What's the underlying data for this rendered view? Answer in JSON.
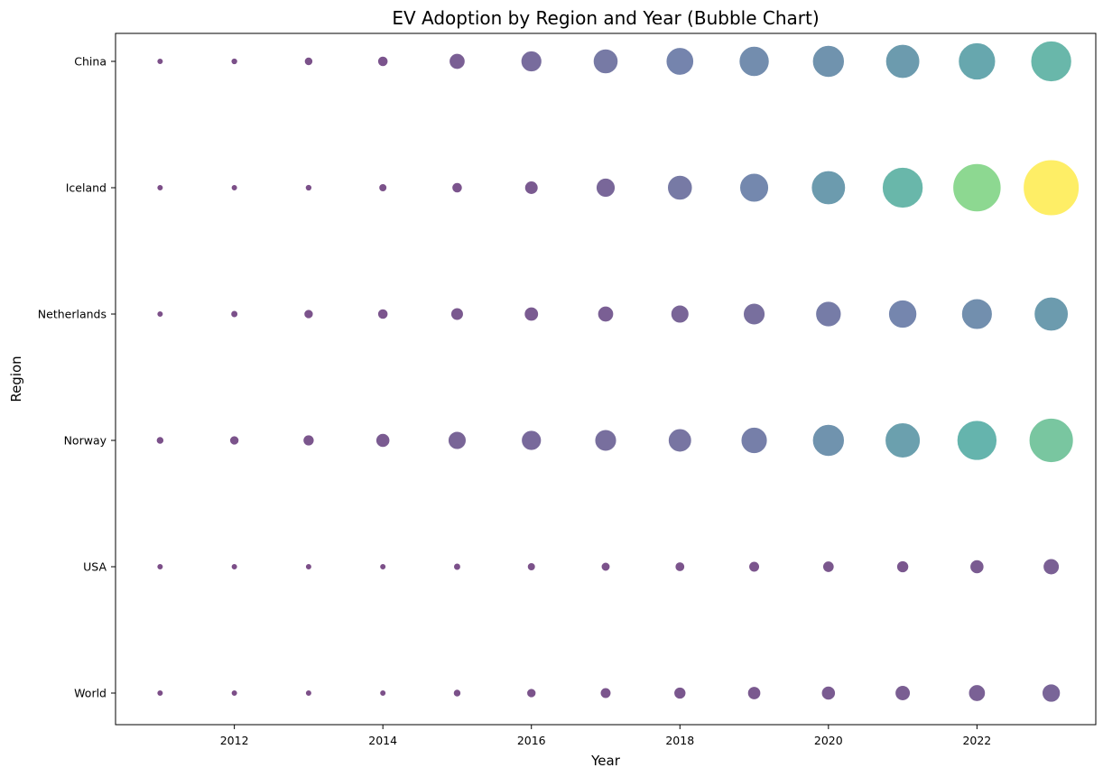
{
  "chart_data": {
    "type": "scatter",
    "title": "EV Adoption by Region and Year (Bubble Chart)",
    "xlabel": "Year",
    "ylabel": "Region",
    "xlim": [
      2010.4,
      2023.6
    ],
    "x_ticks": [
      2012,
      2014,
      2016,
      2018,
      2020,
      2022
    ],
    "categories": [
      "World",
      "USA",
      "Norway",
      "Netherlands",
      "Iceland",
      "China"
    ],
    "x": [
      2011,
      2012,
      2013,
      2014,
      2015,
      2016,
      2017,
      2018,
      2019,
      2020,
      2021,
      2022,
      2023
    ],
    "colormap": "viridis",
    "size_range_note": "bubble area and color encode relative share",
    "series": [
      {
        "category": "China",
        "values": [
          0.5,
          0.6,
          1.0,
          1.5,
          3.5,
          6.0,
          8.5,
          10.5,
          12.5,
          14.0,
          16.0,
          19.0,
          23.0
        ]
      },
      {
        "category": "Iceland",
        "values": [
          0.3,
          0.4,
          0.6,
          0.9,
          1.5,
          2.5,
          5.0,
          8.5,
          11.5,
          16.0,
          23.0,
          32.0,
          43.0
        ]
      },
      {
        "category": "Netherlands",
        "values": [
          0.5,
          0.7,
          1.2,
          1.5,
          2.2,
          2.8,
          3.5,
          4.5,
          6.5,
          9.0,
          11.0,
          13.0,
          16.0
        ]
      },
      {
        "category": "Norway",
        "values": [
          0.8,
          1.2,
          1.7,
          2.7,
          4.5,
          5.5,
          6.5,
          7.5,
          9.5,
          14.0,
          17.0,
          22.0,
          27.0
        ]
      },
      {
        "category": "USA",
        "values": [
          0.3,
          0.3,
          0.4,
          0.5,
          0.7,
          0.9,
          1.1,
          1.3,
          1.6,
          1.8,
          2.0,
          2.7,
          3.6
        ]
      },
      {
        "category": "World",
        "values": [
          0.3,
          0.3,
          0.4,
          0.5,
          0.8,
          1.2,
          1.6,
          2.0,
          2.4,
          2.7,
          3.2,
          3.9,
          4.6
        ]
      }
    ],
    "max_value": 43.0,
    "grid": false,
    "legend": "none"
  }
}
